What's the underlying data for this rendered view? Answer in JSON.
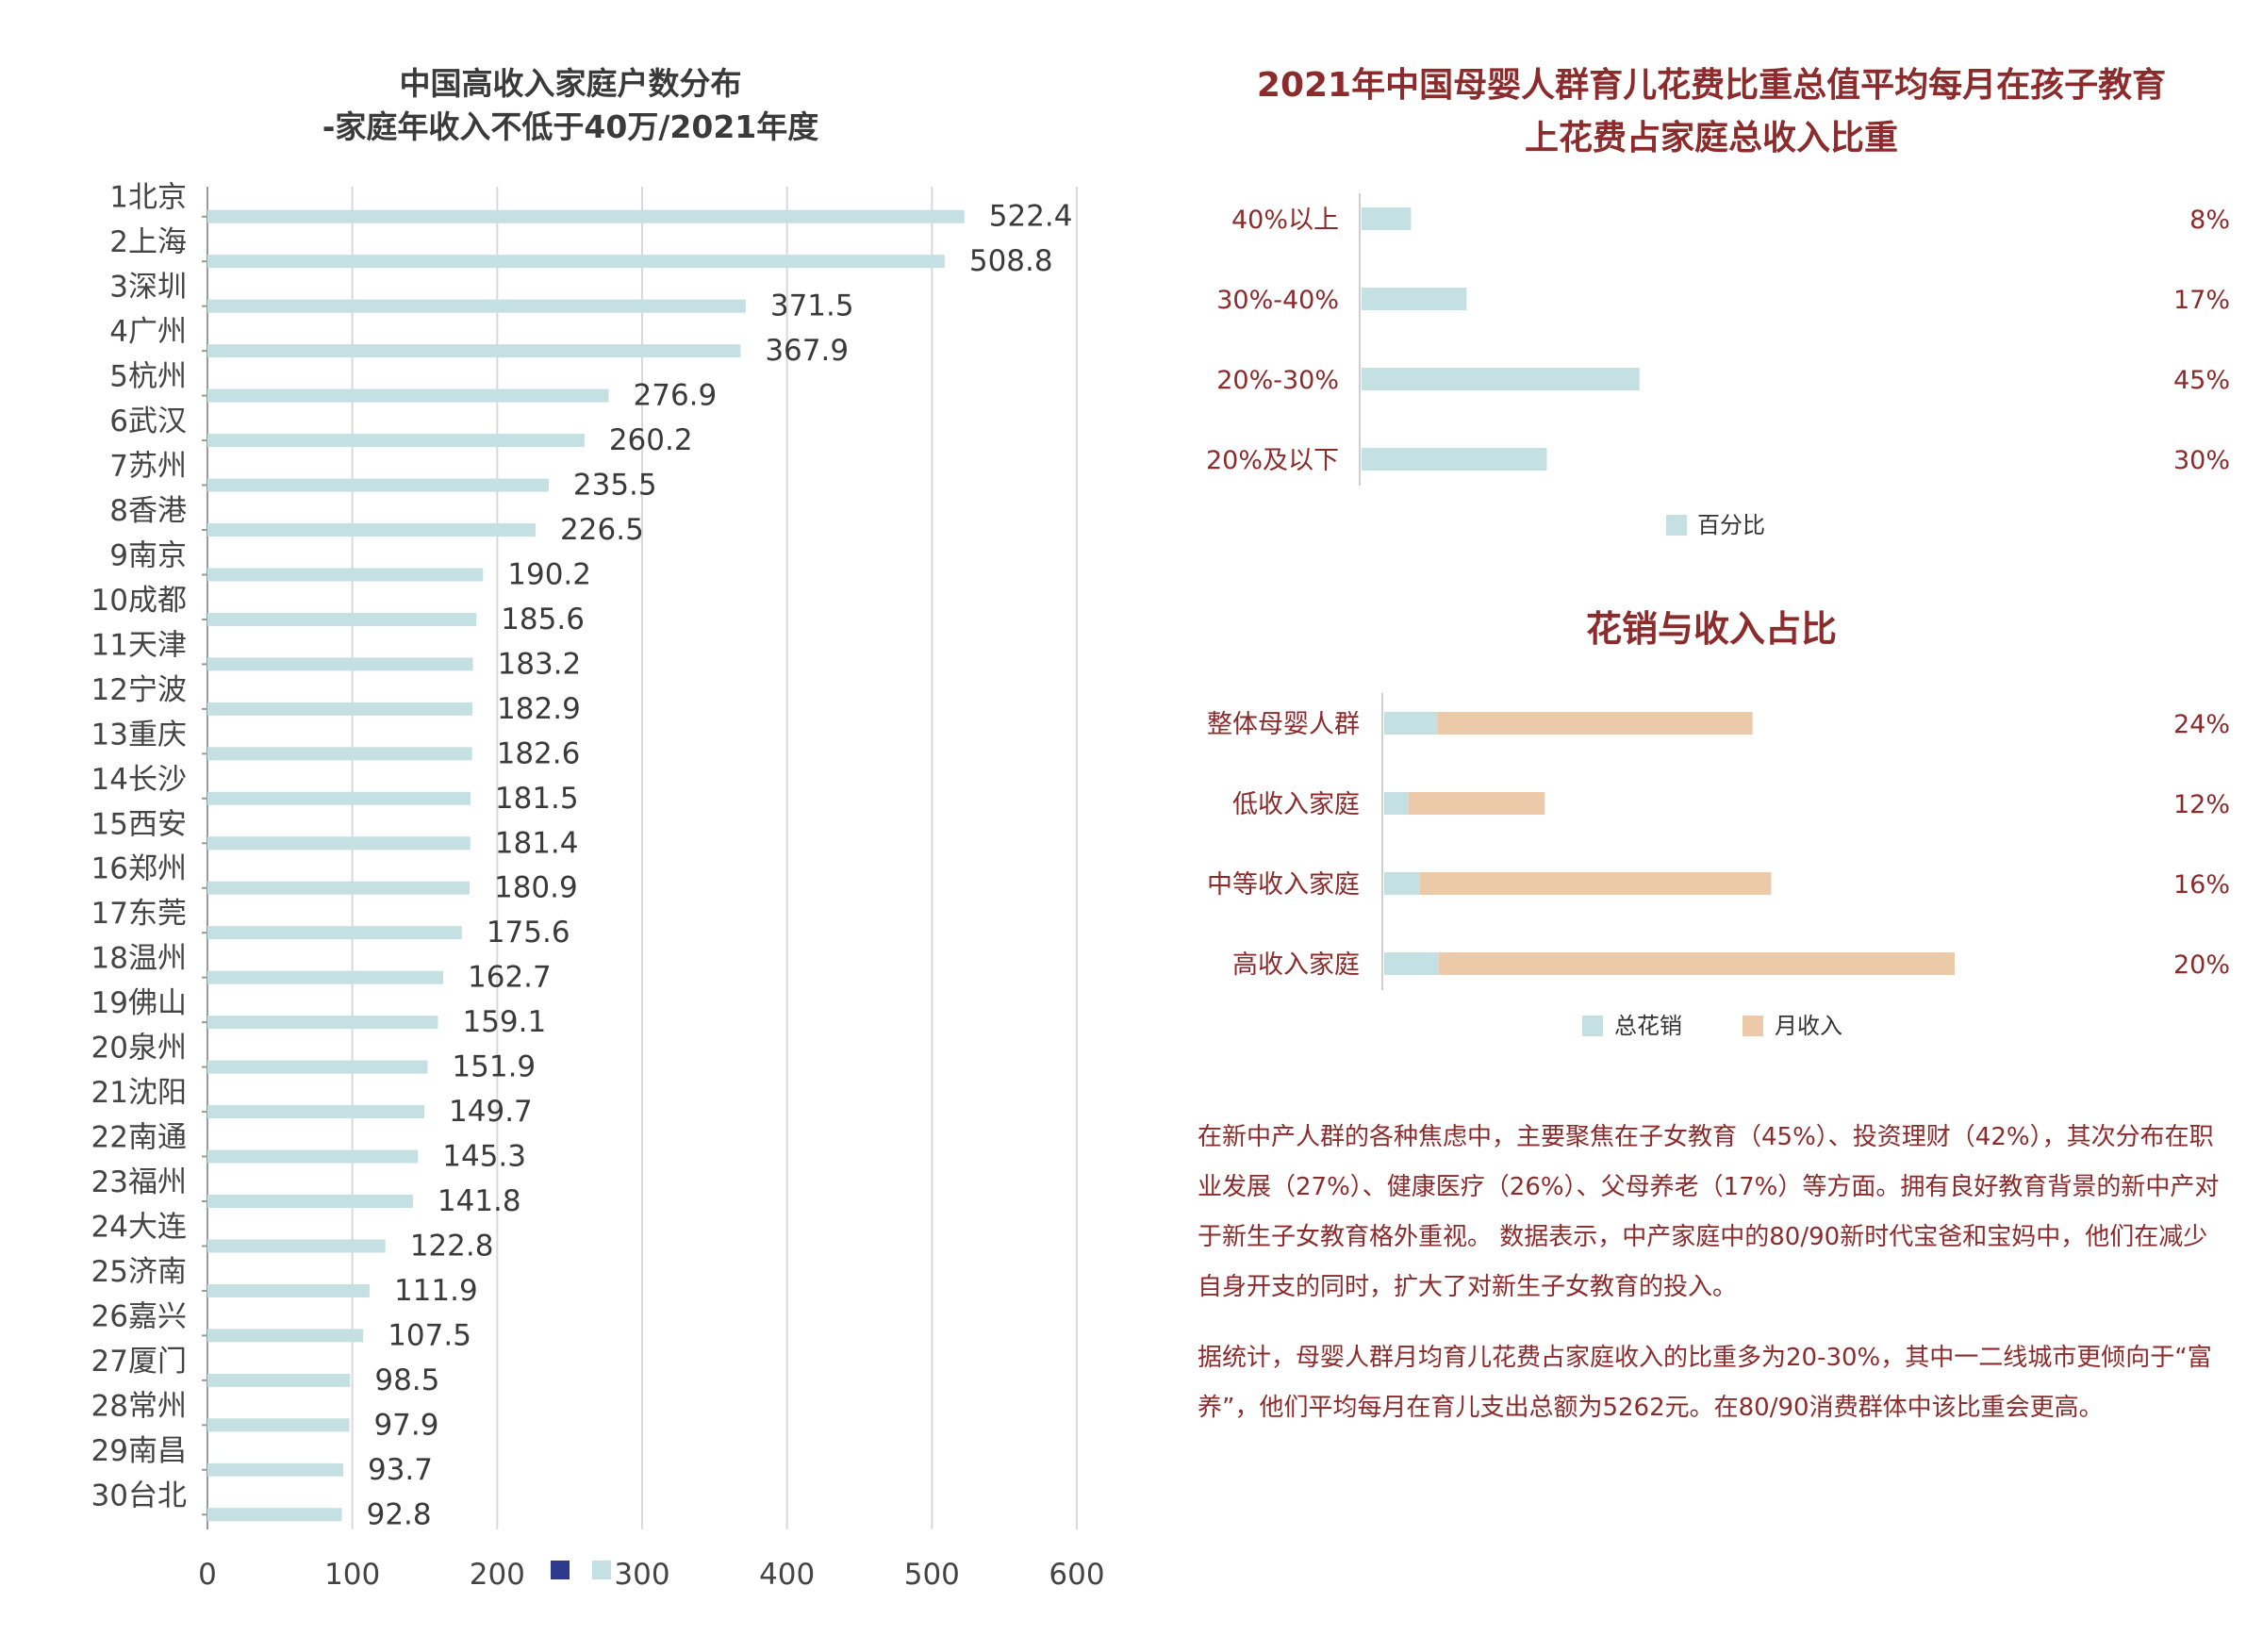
{
  "chart_data": [
    {
      "type": "bar",
      "orientation": "horizontal",
      "title": [
        "中国高收入家庭户数分布",
        "-家庭年收入不低于40万/2021年度"
      ],
      "categories": [
        "1北京",
        "2上海",
        "3深圳",
        "4广州",
        "5杭州",
        "6武汉",
        "7苏州",
        "8香港",
        "9南京",
        "10成都",
        "11天津",
        "12宁波",
        "13重庆",
        "14长沙",
        "15西安",
        "16郑州",
        "17东莞",
        "18温州",
        "19佛山",
        "20泉州",
        "21沈阳",
        "22南通",
        "23福州",
        "24大连",
        "25济南",
        "26嘉兴",
        "27厦门",
        "28常州",
        "29南昌",
        "30台北"
      ],
      "values": [
        522.4,
        508.8,
        371.5,
        367.9,
        276.9,
        260.2,
        235.5,
        226.5,
        190.2,
        185.6,
        183.2,
        182.9,
        182.6,
        181.5,
        181.4,
        180.9,
        175.6,
        162.7,
        159.1,
        151.9,
        149.7,
        145.3,
        141.8,
        122.8,
        111.9,
        107.5,
        98.5,
        97.9,
        93.7,
        92.8
      ],
      "value_labels": [
        "522.4",
        "508.8",
        "371.5",
        "367.9",
        "276.9",
        "260.2",
        "235.5",
        "226.5",
        "190.2",
        "185.6",
        "183.2",
        "182.9",
        "182.6",
        "181.5",
        "181.4",
        "180.9",
        "175.6",
        "162.7",
        "159.1",
        "151.9",
        "149.7",
        "145.3",
        "141.8",
        "122.8",
        "111.9",
        "107.5",
        "98.5",
        "97.9",
        "93.7",
        "92.8"
      ],
      "xlim": [
        0,
        600
      ],
      "xticks": [
        "0",
        "100",
        "200",
        "300",
        "400",
        "500",
        "600"
      ],
      "grid": true,
      "bar_color": "#c5e0e3",
      "legend_marker_color": "#2d3a8c"
    },
    {
      "type": "bar",
      "orientation": "horizontal",
      "title": [
        "2021年中国母婴人群育儿花费比重总值平均每月在孩子教育",
        "上花费占家庭总收入比重"
      ],
      "categories": [
        "40%以上",
        "30%-40%",
        "20%-30%",
        "20%及以下"
      ],
      "values": [
        8,
        17,
        45,
        30
      ],
      "value_labels": [
        "8%",
        "17%",
        "45%",
        "30%"
      ],
      "legend": [
        "百分比"
      ],
      "bar_color": "#c5e0e3"
    },
    {
      "type": "bar",
      "orientation": "horizontal",
      "stacked": true,
      "title": "花销与收入占比",
      "categories": [
        "整体母婴人群",
        "低收入家庭",
        "中等收入家庭",
        "高收入家庭"
      ],
      "series": [
        {
          "name": "总花销",
          "values": [
            3.7,
            1.7,
            2.5,
            3.8
          ],
          "color": "#c5e0e3"
        },
        {
          "name": "月收入",
          "values": [
            22,
            9.5,
            24.5,
            36
          ],
          "color": "#ecc9a8"
        }
      ],
      "value_labels": [
        "24%",
        "12%",
        "16%",
        "20%"
      ]
    }
  ],
  "text": {
    "para1": "在新中产人群的各种焦虑中，主要聚焦在子女教育（45%）、投资理财（42%），其次分布在职业发展（27%）、健康医疗（26%）、父母养老（17%）等方面。拥有良好教育背景的新中产对于新生子女教育格外重视。 数据表示，中产家庭中的80/90新时代宝爸和宝妈中，他们在减少自身开支的同时，扩大了对新生子女教育的投入。",
    "para2": "据统计，母婴人群月均育儿花费占家庭收入的比重多为20-30%，其中一二线城市更倾向于“富养”，他们平均每月在育儿支出总额为5262元。在80/90消费群体中该比重会更高。"
  },
  "colors": {
    "dark_red": "#8b2b2b",
    "axis_text": "#333333",
    "grid": "#d9d9d9",
    "bar_blue": "#c5e0e3",
    "bar_peach": "#ecc9a8"
  }
}
